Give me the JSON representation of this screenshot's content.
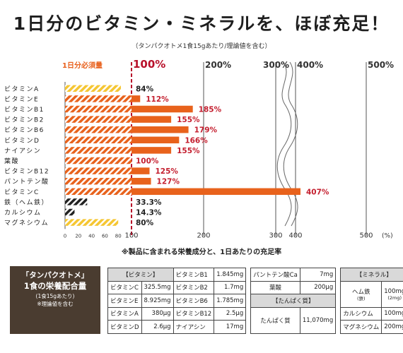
{
  "title": "1日分のビタミン・ミネラルを、ほぼ充足！",
  "subtitle": "（タンパクオトメ1食15gあたり/理論値を含む）",
  "req_label": "1日分必須量",
  "footnote": "※製品に含まれる栄養成分と、1日あたりの充足率",
  "chart_data": {
    "type": "bar",
    "orientation": "horizontal",
    "x_unit": "(%)",
    "x_axis_break": [
      400,
      400
    ],
    "top_ticks": [
      "100%",
      "200%",
      "300%",
      "400%",
      "500%"
    ],
    "bottom_ticks": [
      "0",
      "20",
      "40",
      "60",
      "80",
      "100",
      "200",
      "300",
      "400",
      "500"
    ],
    "reference_line": 100,
    "categories": [
      "ビタミンA",
      "ビタミンE",
      "ビタミンB1",
      "ビタミンB2",
      "ビタミンB6",
      "ビタミンD",
      "ナイアシン",
      "葉酸",
      "ビタミンB12",
      "パントテン酸",
      "ビタミンC",
      "鉄（ヘム鉄）",
      "カルシウム",
      "マグネシウム"
    ],
    "values": [
      84,
      112,
      185,
      155,
      179,
      166,
      155,
      100,
      125,
      127,
      407,
      33.3,
      14.3,
      80
    ],
    "value_labels": [
      "84%",
      "112%",
      "185%",
      "155%",
      "179%",
      "166%",
      "155%",
      "100%",
      "125%",
      "127%",
      "407%",
      "33.3%",
      "14.3%",
      "80%"
    ],
    "colors": {
      "vitamin_below": "#f5c632",
      "vitamin_above": "#e8621c",
      "mineral": "#222222",
      "reference": "#b8102a",
      "accent": "#e8601c",
      "label_above": "#c41e2e"
    }
  },
  "box": {
    "line1": "「タンパクオトメ」",
    "line2": "1食の栄養配合量",
    "line3": "(1食15gあたり)",
    "line4": "※理論値を含む"
  },
  "table": {
    "vit_header": "【ビタミン】",
    "protein_header": "【たんぱく質】",
    "mineral_header": "【ミネラル】",
    "vitamins": [
      {
        "name": "ビタミンB1",
        "value": "1.845mg"
      },
      {
        "name": "パントテン酸Ca",
        "value": "7mg"
      },
      {
        "name": "ビタミンC",
        "value": "325.5mg"
      },
      {
        "name": "ビタミンB2",
        "value": "1.7mg"
      },
      {
        "name": "葉酸",
        "value": "200μg"
      },
      {
        "name": "ビタミンE",
        "value": "8.925mg"
      },
      {
        "name": "ビタミンB6",
        "value": "1.785mg"
      },
      {
        "name": "ビタミンA",
        "value": "380μg"
      },
      {
        "name": "ビタミンB12",
        "value": "2.5μg"
      },
      {
        "name": "ビタミンD",
        "value": "2.6μg"
      },
      {
        "name": "ナイアシン",
        "value": "17mg"
      }
    ],
    "protein": {
      "name": "たんぱく質",
      "value": "11,070mg"
    },
    "minerals": [
      {
        "name": "ヘム鉄",
        "sub": "(鉄)",
        "value": "100mg",
        "value_sub": "(2mg)"
      },
      {
        "name": "カルシウム",
        "value": "100mg"
      },
      {
        "name": "マグネシウム",
        "value": "200mg"
      }
    ]
  }
}
